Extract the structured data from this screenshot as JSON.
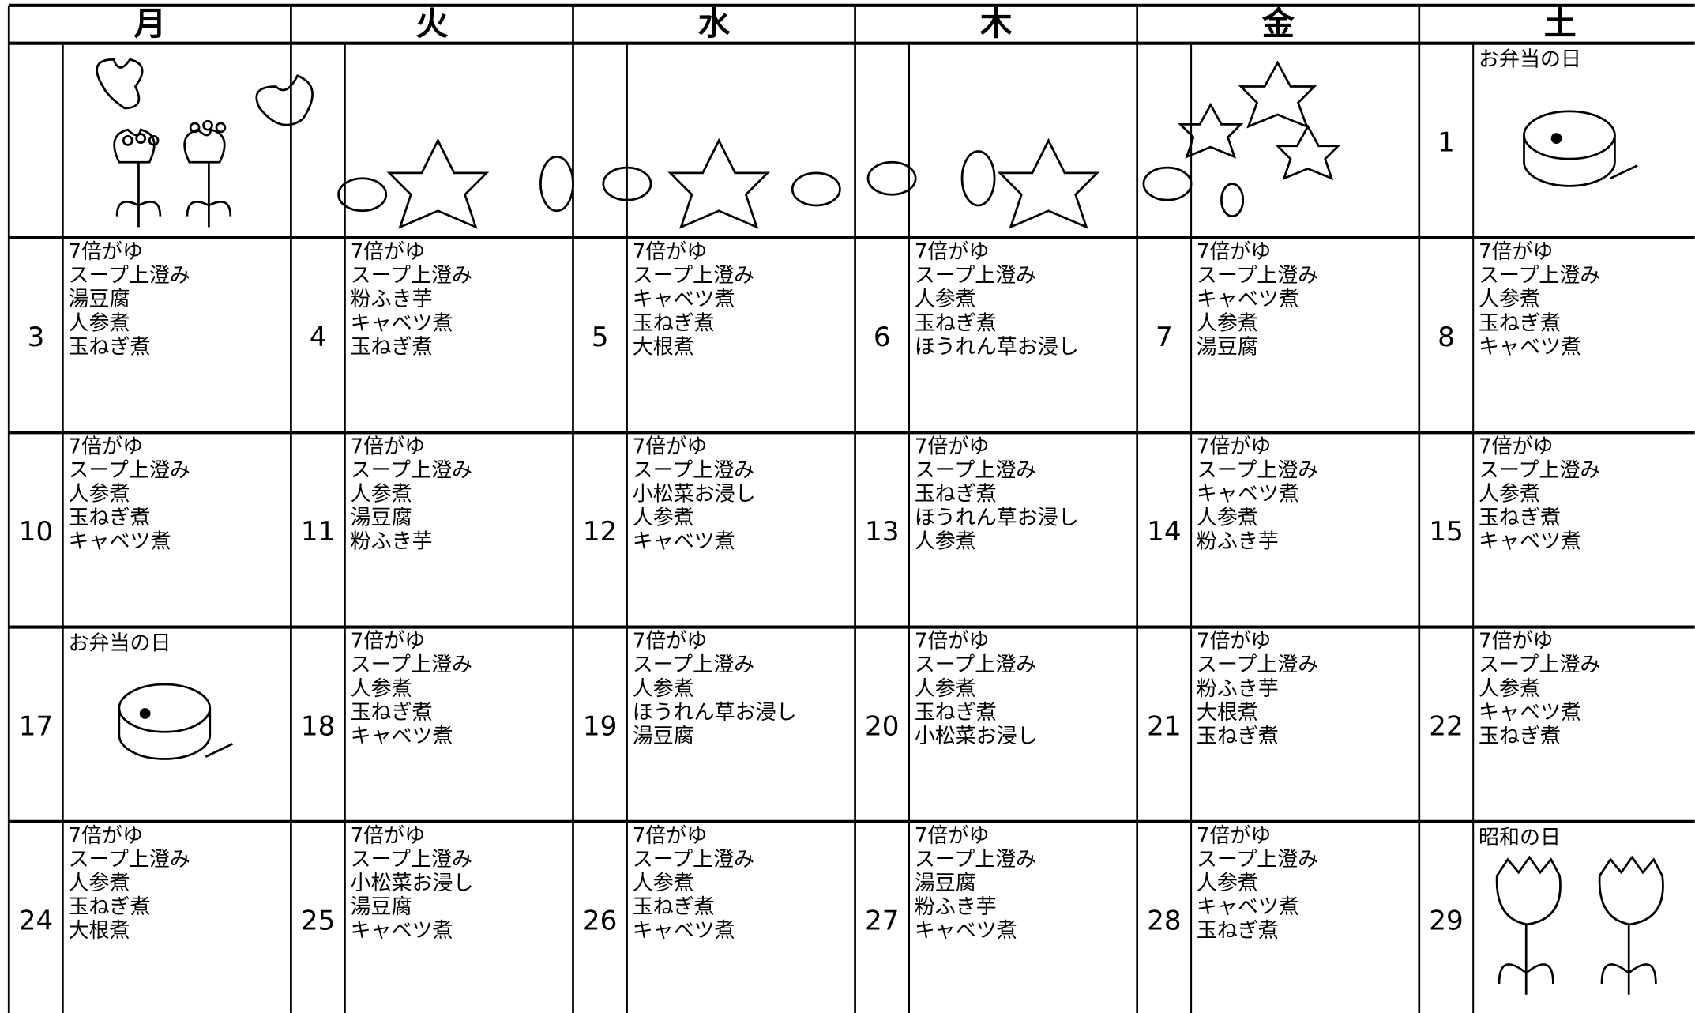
{
  "header": {
    "weekdays": [
      "月",
      "火",
      "水",
      "木",
      "金",
      "土"
    ]
  },
  "weeks": [
    {
      "days": [
        null,
        null,
        null,
        null,
        null,
        {
          "date": 1,
          "note": "お弁当の日"
        }
      ]
    },
    {
      "days": [
        {
          "date": 3,
          "items": [
            "7倍がゆ",
            "スープ上澄み",
            "湯豆腐",
            "人参煮",
            "玉ねぎ煮"
          ]
        },
        {
          "date": 4,
          "items": [
            "7倍がゆ",
            "スープ上澄み",
            "粉ふき芋",
            "キャベツ煮",
            "玉ねぎ煮"
          ]
        },
        {
          "date": 5,
          "items": [
            "7倍がゆ",
            "スープ上澄み",
            "キャベツ煮",
            "玉ねぎ煮",
            "大根煮"
          ]
        },
        {
          "date": 6,
          "items": [
            "7倍がゆ",
            "スープ上澄み",
            "人参煮",
            "玉ねぎ煮",
            "ほうれん草お浸し"
          ]
        },
        {
          "date": 7,
          "items": [
            "7倍がゆ",
            "スープ上澄み",
            "キャベツ煮",
            "人参煮",
            "湯豆腐"
          ]
        },
        {
          "date": 8,
          "items": [
            "7倍がゆ",
            "スープ上澄み",
            "人参煮",
            "玉ねぎ煮",
            "キャベツ煮"
          ]
        }
      ]
    },
    {
      "days": [
        {
          "date": 10,
          "items": [
            "7倍がゆ",
            "スープ上澄み",
            "人参煮",
            "玉ねぎ煮",
            "キャベツ煮"
          ]
        },
        {
          "date": 11,
          "items": [
            "7倍がゆ",
            "スープ上澄み",
            "人参煮",
            "湯豆腐",
            "粉ふき芋"
          ]
        },
        {
          "date": 12,
          "items": [
            "7倍がゆ",
            "スープ上澄み",
            "小松菜お浸し",
            "人参煮",
            "キャベツ煮"
          ]
        },
        {
          "date": 13,
          "items": [
            "7倍がゆ",
            "スープ上澄み",
            "玉ねぎ煮",
            "ほうれん草お浸し",
            "人参煮"
          ]
        },
        {
          "date": 14,
          "items": [
            "7倍がゆ",
            "スープ上澄み",
            "キャベツ煮",
            "人参煮",
            "粉ふき芋"
          ]
        },
        {
          "date": 15,
          "items": [
            "7倍がゆ",
            "スープ上澄み",
            "人参煮",
            "玉ねぎ煮",
            "キャベツ煮"
          ]
        }
      ]
    },
    {
      "days": [
        {
          "date": 17,
          "note": "お弁当の日"
        },
        {
          "date": 18,
          "items": [
            "7倍がゆ",
            "スープ上澄み",
            "人参煮",
            "玉ねぎ煮",
            "キャベツ煮"
          ]
        },
        {
          "date": 19,
          "items": [
            "7倍がゆ",
            "スープ上澄み",
            "人参煮",
            "ほうれん草お浸し",
            "湯豆腐"
          ]
        },
        {
          "date": 20,
          "items": [
            "7倍がゆ",
            "スープ上澄み",
            "人参煮",
            "玉ねぎ煮",
            "小松菜お浸し"
          ]
        },
        {
          "date": 21,
          "items": [
            "7倍がゆ",
            "スープ上澄み",
            "粉ふき芋",
            "大根煮",
            "玉ねぎ煮"
          ]
        },
        {
          "date": 22,
          "items": [
            "7倍がゆ",
            "スープ上澄み",
            "人参煮",
            "キャベツ煮",
            "玉ねぎ煮"
          ]
        }
      ]
    },
    {
      "days": [
        {
          "date": 24,
          "items": [
            "7倍がゆ",
            "スープ上澄み",
            "人参煮",
            "玉ねぎ煮",
            "大根煮"
          ]
        },
        {
          "date": 25,
          "items": [
            "7倍がゆ",
            "スープ上澄み",
            "小松菜お浸し",
            "湯豆腐",
            "キャベツ煮"
          ]
        },
        {
          "date": 26,
          "items": [
            "7倍がゆ",
            "スープ上澄み",
            "人参煮",
            "玉ねぎ煮",
            "キャベツ煮"
          ]
        },
        {
          "date": 27,
          "items": [
            "7倍がゆ",
            "スープ上澄み",
            "湯豆腐",
            "粉ふき芋",
            "キャベツ煮"
          ]
        },
        {
          "date": 28,
          "items": [
            "7倍がゆ",
            "スープ上澄み",
            "人参煮",
            "キャベツ煮",
            "玉ねぎ煮"
          ]
        },
        {
          "date": 29,
          "note": "昭和の日"
        }
      ]
    }
  ]
}
